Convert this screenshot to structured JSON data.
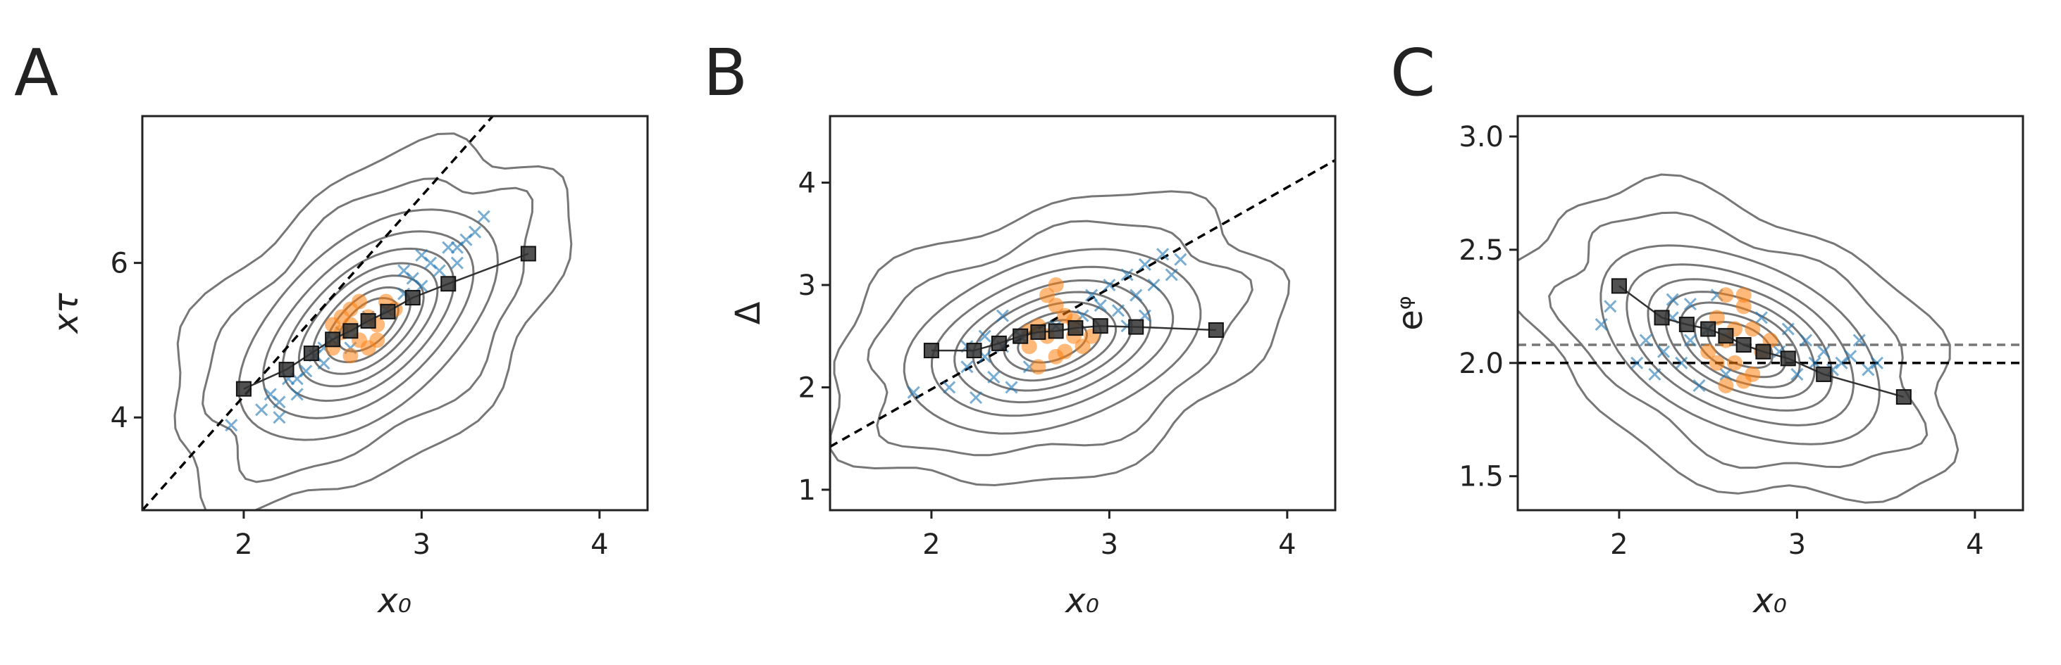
{
  "chart_data": [
    {
      "type": "scatter",
      "panel_label": "A",
      "xlabel": "x₀",
      "ylabel": "xτ",
      "xlim": [
        1.43,
        4.27
      ],
      "ylim": [
        2.8,
        7.9
      ],
      "xticks": [
        "2",
        "3",
        "4"
      ],
      "yticks": [
        "4",
        "6"
      ],
      "reference_lines": [
        {
          "type": "identity",
          "x1": 1.43,
          "y1": 2.8,
          "x2": 3.4,
          "y2": 7.9,
          "style": "dashed",
          "color": "#000000"
        }
      ],
      "density_contours": {
        "center": [
          2.7,
          5.2
        ],
        "color": "#777777",
        "levels": 9
      },
      "series": [
        {
          "marker": "x",
          "color": "#1f77b4",
          "points": [
            [
              1.93,
              3.9
            ],
            [
              2.1,
              4.1
            ],
            [
              2.15,
              4.3
            ],
            [
              2.2,
              4.0
            ],
            [
              2.25,
              4.5
            ],
            [
              2.3,
              4.3
            ],
            [
              2.35,
              4.6
            ],
            [
              2.4,
              4.8
            ],
            [
              2.45,
              4.7
            ],
            [
              2.5,
              5.0
            ],
            [
              2.55,
              5.1
            ],
            [
              2.6,
              4.9
            ],
            [
              2.7,
              5.3
            ],
            [
              2.8,
              5.4
            ],
            [
              2.9,
              5.6
            ],
            [
              2.95,
              5.8
            ],
            [
              3.0,
              5.7
            ],
            [
              3.05,
              6.0
            ],
            [
              3.1,
              5.9
            ],
            [
              3.15,
              6.2
            ],
            [
              3.2,
              6.0
            ],
            [
              3.25,
              6.3
            ],
            [
              3.3,
              6.4
            ],
            [
              3.35,
              6.6
            ],
            [
              2.2,
              4.2
            ],
            [
              2.3,
              4.5
            ],
            [
              2.45,
              4.9
            ],
            [
              2.9,
              5.9
            ],
            [
              3.0,
              6.1
            ],
            [
              3.2,
              6.2
            ]
          ]
        },
        {
          "marker": "o",
          "color": "#ff7f0e",
          "points": [
            [
              2.5,
              4.9
            ],
            [
              2.55,
              5.1
            ],
            [
              2.6,
              5.2
            ],
            [
              2.65,
              5.0
            ],
            [
              2.7,
              5.3
            ],
            [
              2.75,
              5.2
            ],
            [
              2.8,
              5.5
            ],
            [
              2.6,
              5.4
            ],
            [
              2.7,
              4.9
            ],
            [
              2.55,
              5.3
            ],
            [
              2.65,
              5.5
            ],
            [
              2.75,
              5.0
            ],
            [
              2.5,
              5.2
            ],
            [
              2.85,
              5.4
            ],
            [
              2.6,
              4.8
            ]
          ]
        },
        {
          "marker": "s",
          "color": "#333333",
          "points": [
            [
              2.0,
              4.37
            ],
            [
              2.24,
              4.62
            ],
            [
              2.38,
              4.83
            ],
            [
              2.5,
              5.01
            ],
            [
              2.6,
              5.12
            ],
            [
              2.7,
              5.25
            ],
            [
              2.81,
              5.37
            ],
            [
              2.95,
              5.55
            ],
            [
              3.15,
              5.73
            ],
            [
              3.6,
              6.12
            ]
          ]
        }
      ]
    },
    {
      "type": "scatter",
      "panel_label": "B",
      "xlabel": "x₀",
      "ylabel": "Δ",
      "xlim": [
        1.43,
        4.27
      ],
      "ylim": [
        0.8,
        4.65
      ],
      "xticks": [
        "2",
        "3",
        "4"
      ],
      "yticks": [
        "1",
        "2",
        "3",
        "4"
      ],
      "reference_lines": [
        {
          "type": "diagonal",
          "x1": 1.43,
          "y1": 1.42,
          "x2": 4.27,
          "y2": 4.22,
          "style": "dashed",
          "color": "#000000"
        }
      ],
      "density_contours": {
        "center": [
          2.68,
          2.45
        ],
        "color": "#777777",
        "levels": 9
      },
      "series": [
        {
          "marker": "x",
          "color": "#1f77b4",
          "points": [
            [
              1.9,
              1.95
            ],
            [
              2.1,
              2.0
            ],
            [
              2.2,
              2.2
            ],
            [
              2.25,
              1.9
            ],
            [
              2.3,
              2.3
            ],
            [
              2.35,
              2.1
            ],
            [
              2.4,
              2.4
            ],
            [
              2.45,
              2.0
            ],
            [
              2.5,
              2.5
            ],
            [
              2.55,
              2.2
            ],
            [
              2.7,
              2.6
            ],
            [
              2.85,
              2.7
            ],
            [
              2.9,
              2.9
            ],
            [
              2.95,
              2.8
            ],
            [
              3.0,
              3.0
            ],
            [
              3.05,
              2.75
            ],
            [
              3.1,
              3.1
            ],
            [
              3.15,
              2.9
            ],
            [
              3.2,
              3.2
            ],
            [
              3.25,
              3.0
            ],
            [
              3.3,
              3.3
            ],
            [
              3.35,
              3.1
            ],
            [
              3.4,
              3.25
            ],
            [
              3.1,
              2.6
            ],
            [
              3.2,
              2.7
            ],
            [
              2.4,
              2.7
            ],
            [
              2.3,
              2.5
            ],
            [
              2.2,
              2.4
            ]
          ]
        },
        {
          "marker": "o",
          "color": "#ff7f0e",
          "points": [
            [
              2.55,
              2.4
            ],
            [
              2.6,
              2.6
            ],
            [
              2.65,
              2.5
            ],
            [
              2.7,
              2.3
            ],
            [
              2.75,
              2.7
            ],
            [
              2.8,
              2.5
            ],
            [
              2.85,
              2.4
            ],
            [
              2.6,
              2.2
            ],
            [
              2.7,
              2.8
            ],
            [
              2.65,
              2.9
            ],
            [
              2.75,
              2.35
            ],
            [
              2.8,
              2.65
            ],
            [
              2.55,
              2.55
            ],
            [
              2.9,
              2.5
            ],
            [
              2.7,
              3.0
            ]
          ]
        },
        {
          "marker": "s",
          "color": "#333333",
          "points": [
            [
              2.0,
              2.36
            ],
            [
              2.24,
              2.36
            ],
            [
              2.38,
              2.43
            ],
            [
              2.5,
              2.5
            ],
            [
              2.6,
              2.54
            ],
            [
              2.7,
              2.55
            ],
            [
              2.81,
              2.58
            ],
            [
              2.95,
              2.6
            ],
            [
              3.15,
              2.59
            ],
            [
              3.6,
              2.56
            ]
          ]
        }
      ]
    },
    {
      "type": "scatter",
      "panel_label": "C",
      "xlabel": "x₀",
      "ylabel": "eᵠ",
      "xlim": [
        1.43,
        4.27
      ],
      "ylim": [
        1.35,
        3.09
      ],
      "xticks": [
        "2",
        "3",
        "4"
      ],
      "yticks": [
        "1.5",
        "2.0",
        "2.5",
        "3.0"
      ],
      "reference_lines": [
        {
          "type": "horizontal",
          "y": 2.0,
          "style": "dashed",
          "color": "#000000"
        },
        {
          "type": "horizontal",
          "y": 2.08,
          "style": "dashed",
          "color": "#777777"
        }
      ],
      "density_contours": {
        "center": [
          2.68,
          2.08
        ],
        "color": "#777777",
        "levels": 9
      },
      "series": [
        {
          "marker": "x",
          "color": "#1f77b4",
          "points": [
            [
              1.9,
              2.17
            ],
            [
              1.95,
              2.25
            ],
            [
              2.1,
              2.0
            ],
            [
              2.15,
              2.1
            ],
            [
              2.2,
              1.95
            ],
            [
              2.25,
              2.05
            ],
            [
              2.3,
              2.2
            ],
            [
              2.35,
              2.0
            ],
            [
              2.4,
              2.1
            ],
            [
              2.45,
              1.9
            ],
            [
              2.5,
              2.15
            ],
            [
              2.55,
              2.3
            ],
            [
              2.6,
              1.95
            ],
            [
              2.9,
              2.05
            ],
            [
              2.95,
              2.15
            ],
            [
              3.0,
              1.95
            ],
            [
              3.05,
              2.1
            ],
            [
              3.1,
              2.0
            ],
            [
              3.15,
              2.05
            ],
            [
              3.2,
              1.97
            ],
            [
              3.25,
              2.0
            ],
            [
              3.3,
              2.03
            ],
            [
              3.35,
              2.1
            ],
            [
              3.4,
              1.97
            ],
            [
              3.45,
              2.0
            ],
            [
              2.3,
              2.28
            ],
            [
              2.4,
              2.26
            ],
            [
              2.8,
              2.2
            ]
          ]
        },
        {
          "marker": "o",
          "color": "#ff7f0e",
          "points": [
            [
              2.5,
              2.05
            ],
            [
              2.55,
              2.2
            ],
            [
              2.6,
              2.1
            ],
            [
              2.65,
              2.0
            ],
            [
              2.7,
              2.3
            ],
            [
              2.75,
              2.15
            ],
            [
              2.8,
              2.05
            ],
            [
              2.6,
              1.9
            ],
            [
              2.7,
              2.25
            ],
            [
              2.55,
              2.0
            ],
            [
              2.65,
              2.15
            ],
            [
              2.75,
              1.95
            ],
            [
              2.85,
              2.1
            ],
            [
              2.6,
              2.3
            ],
            [
              2.7,
              1.92
            ]
          ]
        },
        {
          "marker": "s",
          "color": "#333333",
          "points": [
            [
              2.0,
              2.34
            ],
            [
              2.24,
              2.2
            ],
            [
              2.38,
              2.17
            ],
            [
              2.5,
              2.15
            ],
            [
              2.6,
              2.12
            ],
            [
              2.7,
              2.08
            ],
            [
              2.81,
              2.05
            ],
            [
              2.95,
              2.02
            ],
            [
              3.15,
              1.95
            ],
            [
              3.6,
              1.85
            ]
          ]
        }
      ]
    }
  ]
}
